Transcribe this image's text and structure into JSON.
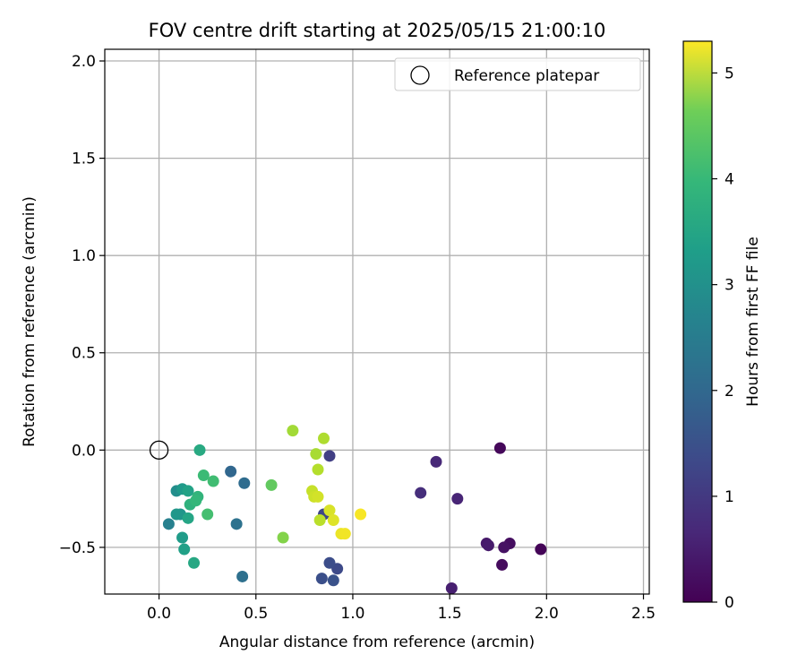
{
  "chart_data": {
    "type": "scatter",
    "title": "FOV centre drift starting at 2025/05/15 21:00:10",
    "xlabel": "Angular distance from reference (arcmin)",
    "ylabel": "Rotation from reference (arcmin)",
    "xlim": [
      -0.28,
      2.53
    ],
    "ylim": [
      -0.74,
      2.06
    ],
    "xticks": [
      "0.0",
      "0.5",
      "1.0",
      "1.5",
      "2.0",
      "2.5"
    ],
    "xtick_values": [
      0,
      0.5,
      1.0,
      1.5,
      2.0,
      2.5
    ],
    "yticks": [
      "−0.5",
      "0.0",
      "0.5",
      "1.0",
      "1.5",
      "2.0"
    ],
    "ytick_values": [
      -0.5,
      0,
      0.5,
      1.0,
      1.5,
      2.0
    ],
    "grid": true,
    "legend": {
      "placement": "upper-right",
      "entries": [
        {
          "label": "Reference platepar",
          "marker": "open-circle",
          "x": 0,
          "y": 0
        }
      ]
    },
    "colorbar": {
      "label": "Hours from first FF file",
      "colormap": "viridis",
      "range": [
        0,
        5.3
      ],
      "ticks": [
        "0",
        "1",
        "2",
        "3",
        "4",
        "5"
      ],
      "tick_values": [
        0,
        1,
        2,
        3,
        4,
        5
      ]
    },
    "points": [
      {
        "x": 1.97,
        "y": -0.51,
        "c": 0.05
      },
      {
        "x": 1.76,
        "y": 0.01,
        "c": 0.1
      },
      {
        "x": 1.77,
        "y": -0.59,
        "c": 0.15
      },
      {
        "x": 1.81,
        "y": -0.48,
        "c": 0.2
      },
      {
        "x": 1.78,
        "y": -0.5,
        "c": 0.25
      },
      {
        "x": 1.69,
        "y": -0.48,
        "c": 0.35
      },
      {
        "x": 1.7,
        "y": -0.49,
        "c": 0.4
      },
      {
        "x": 1.51,
        "y": -0.71,
        "c": 0.45
      },
      {
        "x": 1.54,
        "y": -0.25,
        "c": 0.55
      },
      {
        "x": 1.43,
        "y": -0.06,
        "c": 0.6
      },
      {
        "x": 1.35,
        "y": -0.22,
        "c": 0.7
      },
      {
        "x": 0.88,
        "y": -0.03,
        "c": 1.0
      },
      {
        "x": 0.85,
        "y": -0.33,
        "c": 1.1
      },
      {
        "x": 0.92,
        "y": -0.61,
        "c": 1.2
      },
      {
        "x": 0.88,
        "y": -0.58,
        "c": 1.25
      },
      {
        "x": 0.84,
        "y": -0.66,
        "c": 1.3
      },
      {
        "x": 0.9,
        "y": -0.67,
        "c": 1.35
      },
      {
        "x": 0.37,
        "y": -0.11,
        "c": 1.75
      },
      {
        "x": 0.44,
        "y": -0.17,
        "c": 1.85
      },
      {
        "x": 0.43,
        "y": -0.65,
        "c": 1.95
      },
      {
        "x": 0.4,
        "y": -0.38,
        "c": 2.0
      },
      {
        "x": 0.05,
        "y": -0.38,
        "c": 2.3
      },
      {
        "x": 0.09,
        "y": -0.21,
        "c": 2.6
      },
      {
        "x": 0.11,
        "y": -0.33,
        "c": 2.75
      },
      {
        "x": 0.09,
        "y": -0.33,
        "c": 2.8
      },
      {
        "x": 0.12,
        "y": -0.2,
        "c": 2.85
      },
      {
        "x": 0.12,
        "y": -0.45,
        "c": 2.9
      },
      {
        "x": 0.13,
        "y": -0.51,
        "c": 3.0
      },
      {
        "x": 0.15,
        "y": -0.21,
        "c": 3.05
      },
      {
        "x": 0.15,
        "y": -0.35,
        "c": 3.1
      },
      {
        "x": 0.18,
        "y": -0.58,
        "c": 3.15
      },
      {
        "x": 0.21,
        "y": 0.0,
        "c": 3.2
      },
      {
        "x": 0.16,
        "y": -0.28,
        "c": 3.4
      },
      {
        "x": 0.2,
        "y": -0.24,
        "c": 3.45
      },
      {
        "x": 0.19,
        "y": -0.26,
        "c": 3.5
      },
      {
        "x": 0.23,
        "y": -0.13,
        "c": 3.6
      },
      {
        "x": 0.28,
        "y": -0.16,
        "c": 3.65
      },
      {
        "x": 0.25,
        "y": -0.33,
        "c": 3.7
      },
      {
        "x": 0.58,
        "y": -0.18,
        "c": 4.0
      },
      {
        "x": 0.64,
        "y": -0.45,
        "c": 4.3
      },
      {
        "x": 0.69,
        "y": 0.1,
        "c": 4.55
      },
      {
        "x": 0.81,
        "y": -0.02,
        "c": 4.6
      },
      {
        "x": 0.85,
        "y": 0.06,
        "c": 4.65
      },
      {
        "x": 0.82,
        "y": -0.1,
        "c": 4.7
      },
      {
        "x": 0.83,
        "y": -0.36,
        "c": 4.75
      },
      {
        "x": 0.79,
        "y": -0.21,
        "c": 4.85
      },
      {
        "x": 0.8,
        "y": -0.24,
        "c": 4.9
      },
      {
        "x": 0.82,
        "y": -0.24,
        "c": 4.95
      },
      {
        "x": 0.88,
        "y": -0.31,
        "c": 5.0
      },
      {
        "x": 0.9,
        "y": -0.36,
        "c": 5.05
      },
      {
        "x": 0.94,
        "y": -0.43,
        "c": 5.15
      },
      {
        "x": 0.96,
        "y": -0.43,
        "c": 5.2
      },
      {
        "x": 1.04,
        "y": -0.33,
        "c": 5.25
      }
    ]
  }
}
